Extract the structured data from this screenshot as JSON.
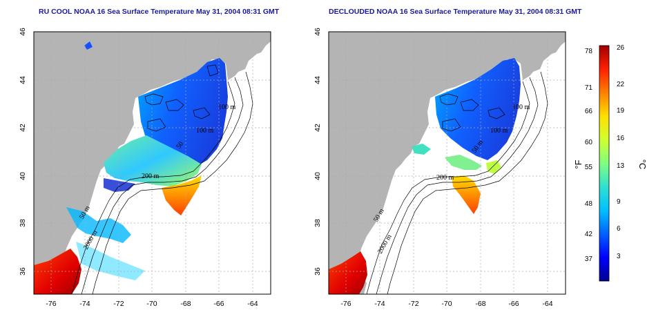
{
  "titles": {
    "left": "RU COOL NOAA 16 Sea Surface Temperature May 31, 2004 08:31 GMT",
    "right": "DECLOUDED NOAA 16 Sea Surface Temperature May 31, 2004 08:31 GMT"
  },
  "axes": {
    "lon_ticks": [
      "-76",
      "-74",
      "-72",
      "-70",
      "-68",
      "-66",
      "-64"
    ],
    "lat_ticks": [
      "46",
      "44",
      "42",
      "40",
      "38",
      "36"
    ]
  },
  "contours": {
    "left": [
      "100 m",
      "100 m",
      "50",
      "200 m",
      "50 m",
      "2000 m"
    ],
    "right": [
      "100 m",
      "100 m",
      "50 m",
      "200 m",
      "50 m",
      "2000 m"
    ]
  },
  "colorbar": {
    "fahrenheit_ticks": [
      "78",
      "71",
      "66",
      "60",
      "55",
      "48",
      "42",
      "37"
    ],
    "celsius_ticks": [
      "26",
      "22",
      "19",
      "16",
      "13",
      "9",
      "6",
      "3"
    ],
    "unit_f": "°F",
    "unit_c": "°C",
    "colors": [
      "#000090",
      "#0000ff",
      "#0060ff",
      "#00c0ff",
      "#30e0d0",
      "#80ff80",
      "#d0ff30",
      "#ffe000",
      "#ff8000",
      "#ff2000",
      "#a00000"
    ]
  },
  "colors": {
    "land": "#b4b4b4",
    "title": "#1a1aa0",
    "grid": "#aaaaaa"
  }
}
